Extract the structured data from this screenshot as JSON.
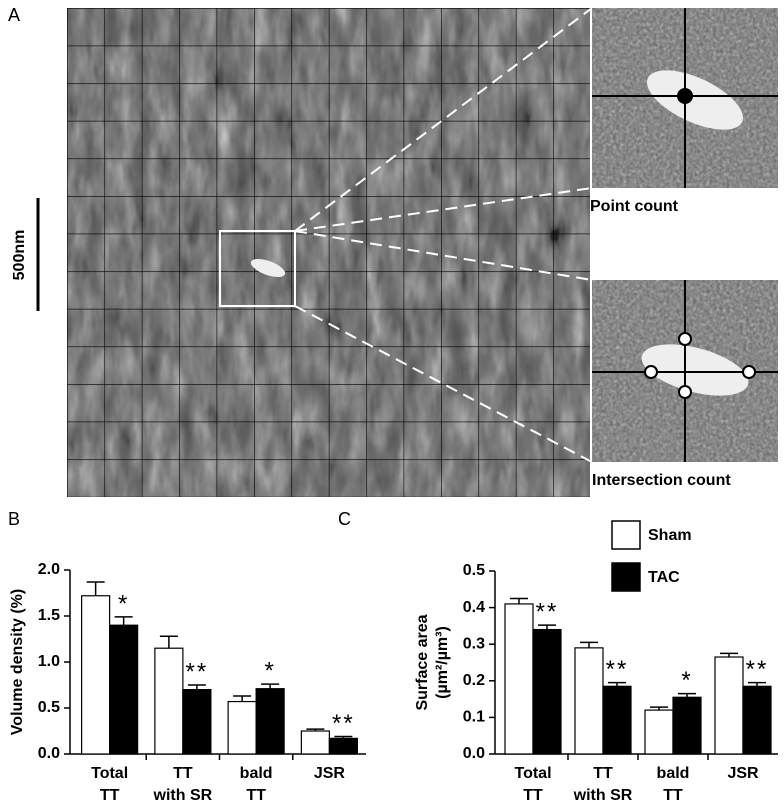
{
  "panel_a": {
    "label": "A",
    "scale_bar": "500nm",
    "insets": [
      "Point count",
      "Intersection count"
    ]
  },
  "chart_data": [
    {
      "type": "bar",
      "panel_label": "B",
      "y_label": [
        "Volume density (%)"
      ],
      "categories": [
        [
          "Total",
          "TT"
        ],
        [
          "TT",
          "with SR"
        ],
        [
          "bald",
          "TT"
        ],
        [
          "JSR"
        ]
      ],
      "series": [
        {
          "color": "#ffffff",
          "values": [
            1.72,
            1.15,
            0.57,
            0.25
          ],
          "errors": [
            0.15,
            0.13,
            0.06,
            0.02
          ]
        },
        {
          "color": "#000000",
          "values": [
            1.4,
            0.7,
            0.71,
            0.17
          ],
          "errors": [
            0.09,
            0.05,
            0.05,
            0.02
          ]
        }
      ],
      "annotations": [
        "*",
        "**",
        "*",
        "**"
      ],
      "ylim": [
        0,
        2
      ],
      "yticks": [
        {
          "value": 0,
          "label": "0.0"
        },
        0.5,
        {
          "value": 1,
          "label": "1.0"
        },
        1.5,
        {
          "value": 2,
          "label": "2.0"
        }
      ],
      "legend": false
    },
    {
      "type": "bar",
      "panel_label": "C",
      "y_label": [
        "Surface area",
        "(µm²/µm³)"
      ],
      "categories": [
        [
          "Total",
          "TT"
        ],
        [
          "TT",
          "with SR"
        ],
        [
          "bald",
          "TT"
        ],
        [
          "JSR"
        ]
      ],
      "series": [
        {
          "name": "Sham",
          "color": "#ffffff",
          "values": [
            0.41,
            0.29,
            0.12,
            0.265
          ],
          "errors": [
            0.015,
            0.015,
            0.008,
            0.01
          ]
        },
        {
          "name": "TAC",
          "color": "#000000",
          "values": [
            0.34,
            0.185,
            0.155,
            0.185
          ],
          "errors": [
            0.012,
            0.01,
            0.01,
            0.01
          ]
        }
      ],
      "annotations": [
        "**",
        "**",
        "*",
        "**"
      ],
      "ylim": [
        0,
        0.5
      ],
      "yticks": [
        {
          "value": 0,
          "label": "0.0"
        },
        0.1,
        0.2,
        0.3,
        0.4,
        0.5
      ],
      "legend": true
    }
  ]
}
